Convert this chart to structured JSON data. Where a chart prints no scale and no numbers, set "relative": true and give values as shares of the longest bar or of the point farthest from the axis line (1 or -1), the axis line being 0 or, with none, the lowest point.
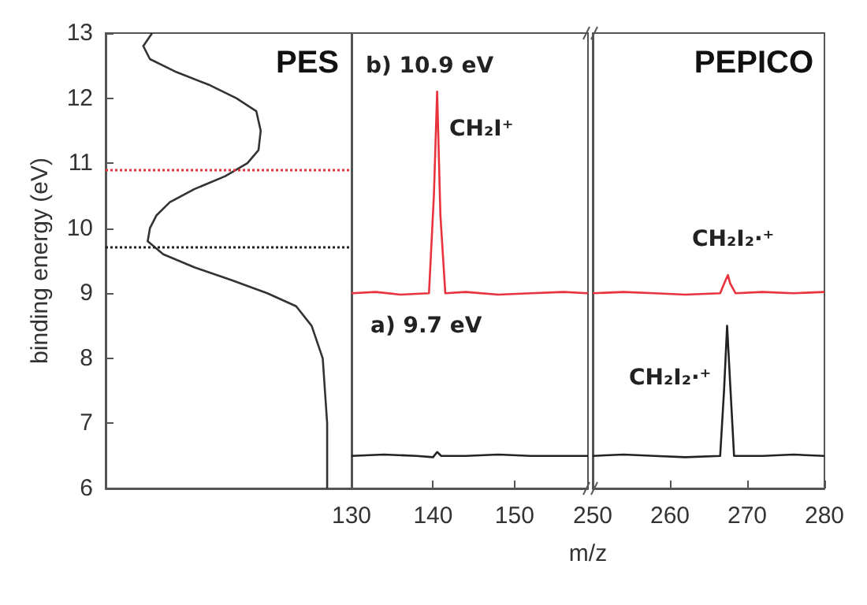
{
  "chart_data": [
    {
      "type": "line",
      "orientation": "horizontal",
      "relative": true,
      "ylabel": "binding energy (eV)",
      "ylim": [
        6,
        13
      ],
      "yticks": [
        6,
        7,
        8,
        9,
        10,
        11,
        12,
        13
      ],
      "tick_labels": "y",
      "marker": "none",
      "annotations": [
        "PES"
      ],
      "series": [
        {
          "color": "#333333",
          "x": [
            6.0,
            7.0,
            8.0,
            8.5,
            8.8,
            9.0,
            9.2,
            9.4,
            9.6,
            9.8,
            10.0,
            10.2,
            10.4,
            10.6,
            10.8,
            11.0,
            11.2,
            11.5,
            11.8,
            12.0,
            12.2,
            12.4,
            12.6,
            12.8,
            13.0
          ],
          "values": [
            1,
            1,
            0.98,
            0.93,
            0.86,
            0.73,
            0.57,
            0.4,
            0.26,
            0.19,
            0.2,
            0.23,
            0.29,
            0.4,
            0.54,
            0.64,
            0.69,
            0.7,
            0.68,
            0.59,
            0.47,
            0.32,
            0.2,
            0.17,
            0.21
          ]
        }
      ],
      "ref_lines": [
        {
          "axis": "y",
          "value": 10.9,
          "color": "#e8323c",
          "line_style": "dotted"
        },
        {
          "axis": "y",
          "value": 9.7,
          "color": "#222222",
          "line_style": "dotted"
        }
      ]
    },
    {
      "type": "line",
      "xlabel": "m/z",
      "xlim": [
        130,
        159
      ],
      "xticks": [
        130,
        140,
        150
      ],
      "ylim": [
        6,
        13
      ],
      "tick_labels": "x",
      "marker": "none",
      "annotations": [
        "b) 10.9 eV",
        "CH₂I⁺",
        "a) 9.7 eV"
      ],
      "series": [
        {
          "color": "#e8323c",
          "x": [
            130,
            133,
            136,
            139.5,
            140.1,
            140.5,
            140.9,
            141.5,
            144,
            148,
            152,
            156,
            159
          ],
          "values": [
            9.0,
            9.02,
            8.98,
            9.0,
            10.5,
            12.1,
            10.2,
            9.0,
            9.02,
            8.98,
            9.0,
            9.02,
            9.0
          ]
        },
        {
          "color": "#222222",
          "x": [
            130,
            134,
            138,
            140,
            140.5,
            141,
            144,
            148,
            152,
            156,
            159
          ],
          "values": [
            6.5,
            6.52,
            6.5,
            6.48,
            6.56,
            6.5,
            6.5,
            6.52,
            6.5,
            6.5,
            6.5
          ]
        }
      ]
    },
    {
      "type": "line",
      "xlim": [
        250,
        280
      ],
      "xticks": [
        250,
        260,
        270,
        280
      ],
      "ylim": [
        6,
        13
      ],
      "tick_labels": "x",
      "marker": "none",
      "annotations": [
        "PEPICO",
        "CH₂I₂·⁺",
        "CH₂I₂·⁺"
      ],
      "series": [
        {
          "color": "#e8323c",
          "x": [
            250,
            254,
            258,
            262,
            266.5,
            267.2,
            267.5,
            267.8,
            268.5,
            272,
            276,
            280
          ],
          "values": [
            9.0,
            9.02,
            9.0,
            8.98,
            9.0,
            9.2,
            9.28,
            9.15,
            9.0,
            9.02,
            9.0,
            9.02
          ]
        },
        {
          "color": "#222222",
          "x": [
            250,
            254,
            258,
            262,
            266.5,
            267.0,
            267.4,
            267.8,
            268.3,
            272,
            276,
            280
          ],
          "values": [
            6.5,
            6.52,
            6.5,
            6.48,
            6.5,
            7.5,
            8.5,
            7.6,
            6.5,
            6.5,
            6.52,
            6.5
          ]
        }
      ]
    }
  ]
}
